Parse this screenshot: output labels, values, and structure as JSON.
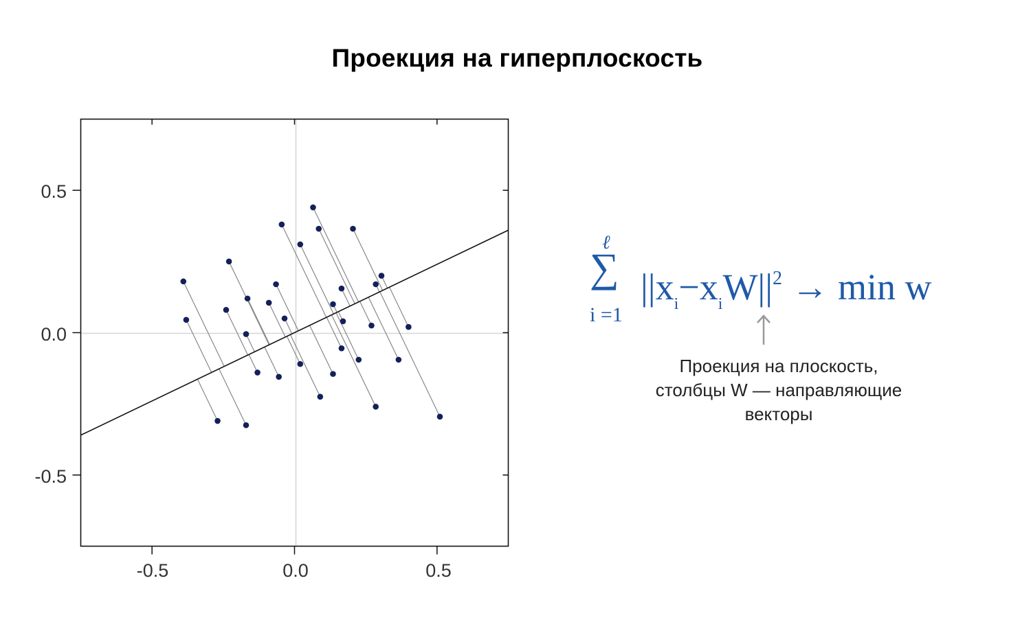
{
  "title": "Проекция на гиперплоскость",
  "chart_data": {
    "type": "scatter",
    "title": "Проекция на гиперплоскость",
    "xlabel": "",
    "ylabel": "",
    "xlim": [
      -0.75,
      0.75
    ],
    "ylim": [
      -0.75,
      0.75
    ],
    "xticks": [
      -0.5,
      0.0,
      0.5
    ],
    "yticks": [
      -0.5,
      0.0,
      0.5
    ],
    "xtick_labels": [
      "-0.5",
      "0.0",
      "0.5"
    ],
    "ytick_labels": [
      "0.5",
      "0.0",
      "-0.5"
    ],
    "grid": "zero lines only",
    "line": {
      "slope": 0.48,
      "intercept": 0.0
    },
    "point_color": "#13205a",
    "line_color": "#111111",
    "projection_color": "#888888",
    "points": [
      [
        -0.39,
        0.18
      ],
      [
        -0.38,
        0.045
      ],
      [
        -0.27,
        -0.31
      ],
      [
        -0.17,
        -0.325
      ],
      [
        -0.23,
        0.25
      ],
      [
        -0.24,
        0.08
      ],
      [
        -0.165,
        0.12
      ],
      [
        -0.17,
        -0.005
      ],
      [
        -0.13,
        -0.14
      ],
      [
        -0.09,
        0.105
      ],
      [
        -0.065,
        0.17
      ],
      [
        -0.055,
        -0.155
      ],
      [
        -0.045,
        0.38
      ],
      [
        -0.035,
        0.05
      ],
      [
        0.02,
        0.31
      ],
      [
        0.02,
        -0.11
      ],
      [
        0.065,
        0.44
      ],
      [
        0.085,
        0.365
      ],
      [
        0.09,
        -0.225
      ],
      [
        0.135,
        0.1
      ],
      [
        0.135,
        -0.145
      ],
      [
        0.165,
        0.155
      ],
      [
        0.165,
        -0.055
      ],
      [
        0.17,
        0.04
      ],
      [
        0.205,
        0.365
      ],
      [
        0.225,
        -0.095
      ],
      [
        0.27,
        0.025
      ],
      [
        0.285,
        -0.26
      ],
      [
        0.285,
        0.17
      ],
      [
        0.305,
        0.2
      ],
      [
        0.365,
        -0.095
      ],
      [
        0.4,
        0.02
      ],
      [
        0.51,
        -0.295
      ]
    ]
  },
  "formula": {
    "sum_top": "ℓ",
    "sum_sign": "∑",
    "sum_bottom": "i =1",
    "part1": "||x",
    "sub1": "i",
    "part2": "−x",
    "sub2": "i",
    "part3": "W||",
    "sup": "2",
    "part4": " → min w"
  },
  "note": {
    "line1": "Проекция на плоскость,",
    "line2": "столбцы W — направляющие",
    "line3": "векторы"
  }
}
